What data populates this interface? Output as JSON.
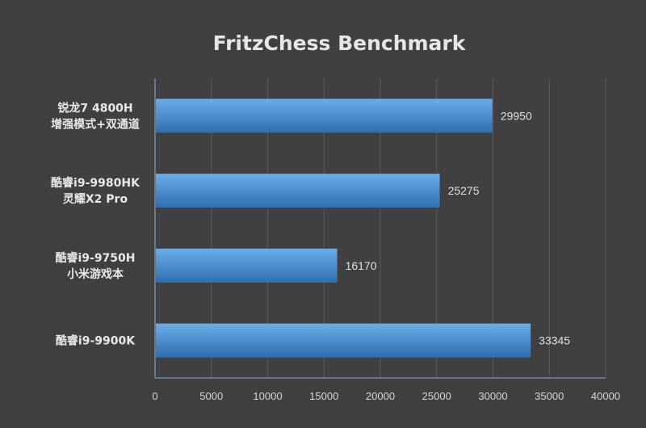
{
  "chart_data": {
    "type": "bar",
    "orientation": "horizontal",
    "title": "FritzChess Benchmark",
    "categories": [
      [
        "锐龙7 4800H",
        "增强模式+双通道"
      ],
      [
        "酷睿i9-9980HK",
        "灵耀X2 Pro"
      ],
      [
        "酷睿i9-9750H",
        "小米游戏本"
      ],
      [
        "酷睿i9-9900K"
      ]
    ],
    "values": [
      29950,
      25275,
      16170,
      33345
    ],
    "data_labels": [
      "29950",
      "25275",
      "16170",
      "33345"
    ],
    "xlim": [
      0,
      40000
    ],
    "x_ticks": [
      "0",
      "5000",
      "10000",
      "15000",
      "20000",
      "25000",
      "30000",
      "35000",
      "40000"
    ],
    "grid": true,
    "legend": "none",
    "colors": {
      "background": "#404040",
      "bar_top": "#6aaee8",
      "bar_bottom": "#2f6fb0",
      "gridline": "#5a5a5a",
      "axis": "#6e88a6"
    }
  }
}
